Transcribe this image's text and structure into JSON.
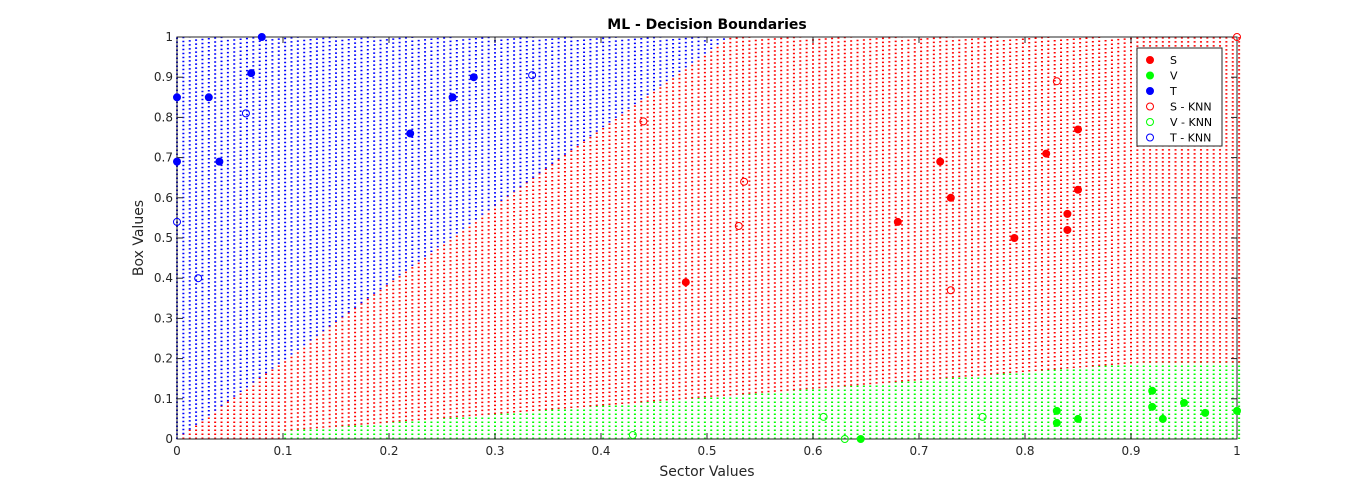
{
  "chart_data": {
    "type": "scatter",
    "title": "ML - Decision Boundaries",
    "xlabel": "Sector Values",
    "ylabel": "Box Values",
    "xlim": [
      0,
      1
    ],
    "ylim": [
      0,
      1
    ],
    "xticks": [
      "0",
      "0.1",
      "0.2",
      "0.3",
      "0.4",
      "0.5",
      "0.6",
      "0.7",
      "0.8",
      "0.9",
      "1"
    ],
    "yticks": [
      "0",
      "0.1",
      "0.2",
      "0.3",
      "0.4",
      "0.5",
      "0.6",
      "0.7",
      "0.8",
      "0.9",
      "1"
    ],
    "grid": false,
    "legend_position": "top-right",
    "colors": {
      "S": "#ff0000",
      "V": "#00ff00",
      "T": "#0000ff"
    },
    "series": [
      {
        "name": "S",
        "marker": "filled",
        "color": "#ff0000",
        "points": [
          [
            0.48,
            0.39
          ],
          [
            0.68,
            0.54
          ],
          [
            0.72,
            0.69
          ],
          [
            0.73,
            0.6
          ],
          [
            0.79,
            0.5
          ],
          [
            0.82,
            0.71
          ],
          [
            0.84,
            0.56
          ],
          [
            0.84,
            0.52
          ],
          [
            0.85,
            0.62
          ],
          [
            0.85,
            0.77
          ]
        ]
      },
      {
        "name": "V",
        "marker": "filled",
        "color": "#00ff00",
        "points": [
          [
            0.645,
            0.0
          ],
          [
            0.83,
            0.07
          ],
          [
            0.83,
            0.04
          ],
          [
            0.85,
            0.05
          ],
          [
            0.92,
            0.12
          ],
          [
            0.92,
            0.08
          ],
          [
            0.93,
            0.05
          ],
          [
            0.95,
            0.09
          ],
          [
            0.97,
            0.065
          ],
          [
            1.0,
            0.07
          ]
        ]
      },
      {
        "name": "T",
        "marker": "filled",
        "color": "#0000ff",
        "points": [
          [
            0.0,
            0.85
          ],
          [
            0.0,
            0.69
          ],
          [
            0.03,
            0.85
          ],
          [
            0.04,
            0.69
          ],
          [
            0.07,
            0.91
          ],
          [
            0.08,
            1.0
          ],
          [
            0.22,
            0.76
          ],
          [
            0.26,
            0.85
          ],
          [
            0.28,
            0.9
          ]
        ]
      },
      {
        "name": "S - KNN",
        "marker": "open",
        "color": "#ff0000",
        "points": [
          [
            0.44,
            0.79
          ],
          [
            0.53,
            0.53
          ],
          [
            0.535,
            0.64
          ],
          [
            0.73,
            0.37
          ],
          [
            0.83,
            0.89
          ],
          [
            1.0,
            1.0
          ]
        ]
      },
      {
        "name": "V - KNN",
        "marker": "open",
        "color": "#00ff00",
        "points": [
          [
            0.43,
            0.01
          ],
          [
            0.61,
            0.055
          ],
          [
            0.63,
            0.0
          ],
          [
            0.76,
            0.055
          ]
        ]
      },
      {
        "name": "T - KNN",
        "marker": "open",
        "color": "#0000ff",
        "points": [
          [
            0.0,
            0.54
          ],
          [
            0.02,
            0.4
          ],
          [
            0.065,
            0.81
          ],
          [
            0.335,
            0.905
          ]
        ]
      }
    ],
    "decision_regions": {
      "V": "y below a boundary rising from about 0.02 at x=0.1 to about 0.19 at x=0.9",
      "T": "upper-left region above a boundary from about (0,0.0) to about (0.52,1.0)",
      "S": "remaining region"
    }
  }
}
